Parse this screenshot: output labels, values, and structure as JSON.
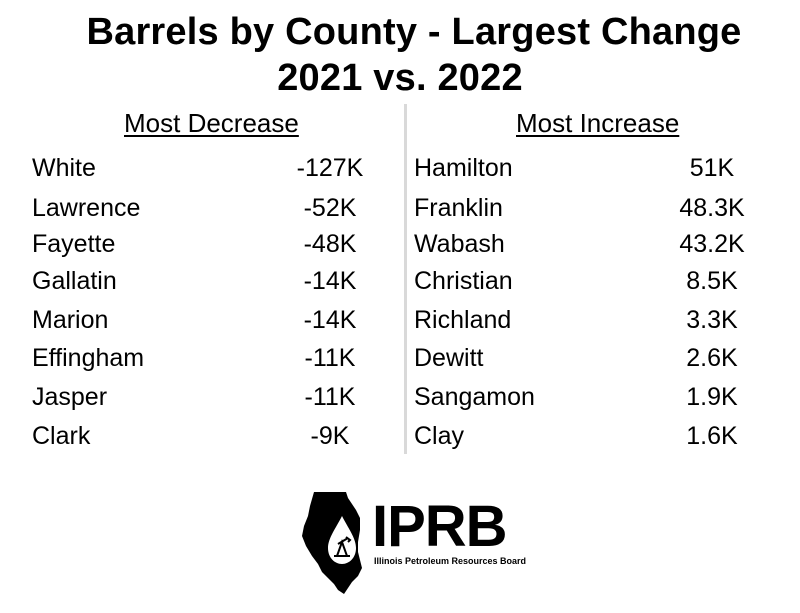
{
  "title_line1": "Barrels by County - Largest Change",
  "title_line2": "2021 vs. 2022",
  "decrease": {
    "heading": "Most Decrease",
    "rows": [
      {
        "county": "White",
        "value": "-127K"
      },
      {
        "county": "Lawrence",
        "value": "-52K"
      },
      {
        "county": "Fayette",
        "value": "-48K"
      },
      {
        "county": "Gallatin",
        "value": "-14K"
      },
      {
        "county": "Marion",
        "value": "-14K"
      },
      {
        "county": "Effingham",
        "value": "-11K"
      },
      {
        "county": "Jasper",
        "value": "-11K"
      },
      {
        "county": "Clark",
        "value": "-9K"
      }
    ]
  },
  "increase": {
    "heading": "Most Increase",
    "rows": [
      {
        "county": "Hamilton",
        "value": "51K"
      },
      {
        "county": "Franklin",
        "value": "48.3K"
      },
      {
        "county": "Wabash",
        "value": "43.2K"
      },
      {
        "county": "Christian",
        "value": "8.5K"
      },
      {
        "county": "Richland",
        "value": "3.3K"
      },
      {
        "county": "Dewitt",
        "value": "2.6K"
      },
      {
        "county": "Sangamon",
        "value": "1.9K"
      },
      {
        "county": "Clay",
        "value": "1.6K"
      }
    ]
  },
  "logo": {
    "text": "IPRB",
    "subtitle": "Illinois Petroleum Resources Board",
    "icon": "illinois-state-oil-drop-icon"
  }
}
